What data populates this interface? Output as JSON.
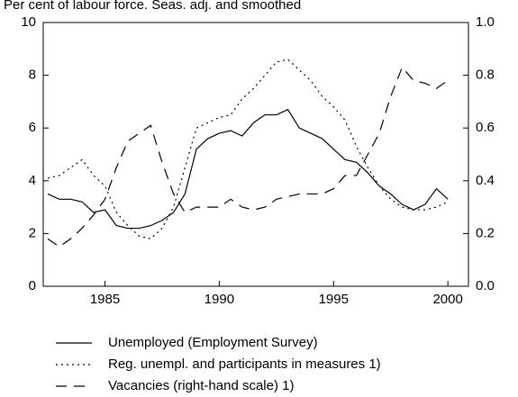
{
  "chart_data": {
    "type": "line",
    "title": "Per cent of labour force. Seas. adj. and smoothed",
    "x": [
      1982.5,
      1983,
      1983.5,
      1984,
      1984.5,
      1985,
      1985.5,
      1986,
      1986.5,
      1987,
      1987.5,
      1988,
      1988.5,
      1989,
      1989.5,
      1990,
      1990.5,
      1991,
      1991.5,
      1992,
      1992.5,
      1993,
      1993.5,
      1994,
      1994.5,
      1995,
      1995.5,
      1996,
      1996.5,
      1997,
      1997.5,
      1998,
      1998.5,
      1999,
      1999.5,
      2000
    ],
    "series": [
      {
        "name": "Unemployed (Employment Survey)",
        "color": "#000000",
        "style": "solid",
        "values": [
          3.5,
          3.3,
          3.3,
          3.2,
          2.8,
          2.9,
          2.3,
          2.2,
          2.2,
          2.3,
          2.5,
          2.8,
          3.5,
          5.2,
          5.6,
          5.8,
          5.9,
          5.7,
          6.2,
          6.5,
          6.5,
          6.7,
          6.0,
          5.8,
          5.6,
          5.2,
          4.8,
          4.7,
          4.3,
          3.8,
          3.5,
          3.1,
          2.9,
          3.1,
          3.7,
          3.3
        ]
      },
      {
        "name": "Reg. unempl. and participants in measures 1)",
        "color": "#000000",
        "style": "dotted",
        "values": [
          4.1,
          4.2,
          4.5,
          4.8,
          4.2,
          3.8,
          2.8,
          2.3,
          1.9,
          1.8,
          2.2,
          3.0,
          4.5,
          6.0,
          6.2,
          6.4,
          6.5,
          7.1,
          7.5,
          8.0,
          8.5,
          8.6,
          8.2,
          7.8,
          7.2,
          6.8,
          6.3,
          5.3,
          4.5,
          3.8,
          3.3,
          3.0,
          2.9,
          2.9,
          3.0,
          3.2
        ]
      },
      {
        "name": "Vacancies (right-hand scale) 1)",
        "color": "#000000",
        "style": "dashed",
        "axis": "y2",
        "values": [
          0.18,
          0.15,
          0.18,
          0.22,
          0.27,
          0.33,
          0.45,
          0.55,
          0.58,
          0.61,
          0.47,
          0.35,
          0.28,
          0.3,
          0.3,
          0.3,
          0.33,
          0.3,
          0.29,
          0.3,
          0.33,
          0.34,
          0.35,
          0.35,
          0.35,
          0.37,
          0.42,
          0.42,
          0.5,
          0.58,
          0.72,
          0.83,
          0.78,
          0.77,
          0.75,
          0.78
        ]
      }
    ],
    "xlim": [
      1982.3,
      2000.9
    ],
    "xticks": [
      1985,
      1990,
      1995,
      2000
    ],
    "ylim": [
      0,
      10
    ],
    "yticks": [
      0,
      2,
      4,
      6,
      8,
      10
    ],
    "y2lim": [
      0,
      1
    ],
    "y2ticks": [
      {
        "value": 0,
        "label": "0.0"
      },
      0.2,
      0.4,
      0.6,
      0.8,
      {
        "value": 1,
        "label": "1.0"
      }
    ]
  }
}
